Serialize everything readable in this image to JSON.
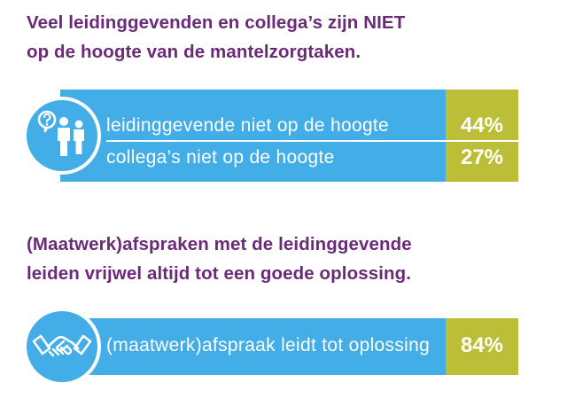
{
  "section1": {
    "heading_line1": "Veel leidinggevenden en collega’s zijn NIET",
    "heading_line2": "op de hoogte van de mantelzorgtaken.",
    "icon": "people-question-icon",
    "rows": [
      {
        "label": "leidinggevende niet op de hoogte",
        "value": "44%"
      },
      {
        "label": "collega’s niet op de hoogte",
        "value": "27%"
      }
    ]
  },
  "section2": {
    "heading_line1": "(Maatwerk)afspraken met de leidinggevende",
    "heading_line2": "leiden vrijwel altijd tot een goede oplossing.",
    "icon": "handshake-icon",
    "rows": [
      {
        "label": "(maatwerk)afspraak leidt tot oplossing",
        "value": "84%"
      }
    ]
  },
  "colors": {
    "heading": "#6b2a78",
    "bar": "#42ade6",
    "score": "#bcbe37",
    "text_on_bar": "#ffffff"
  }
}
